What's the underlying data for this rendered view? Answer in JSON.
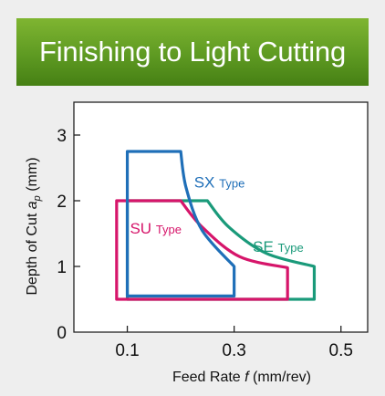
{
  "banner": {
    "title": "Finishing to Light Cutting",
    "color_top": "#7fb531",
    "color_bottom": "#468014"
  },
  "chart_data": {
    "type": "area",
    "xlabel_parts": [
      "Feed Rate ",
      "f",
      " (mm/rev)"
    ],
    "ylabel_parts": [
      "Depth of Cut ",
      "a",
      "p",
      " (mm)"
    ],
    "xlim": [
      0,
      0.55
    ],
    "ylim": [
      0,
      3.5
    ],
    "x_ticks": [
      0.1,
      0.3,
      0.5
    ],
    "x_tick_labels": [
      "0.1",
      "0.3",
      "0.5"
    ],
    "y_ticks": [
      0,
      1,
      2,
      3
    ],
    "y_tick_labels": [
      "0",
      "1",
      "2",
      "3"
    ],
    "grid": false,
    "series": [
      {
        "name": "SE",
        "suffix": "Type",
        "color": "#1a9a7a",
        "outline": [
          [
            0.1,
            0.5
          ],
          [
            0.1,
            2.0
          ],
          [
            0.25,
            2.0
          ],
          [
            0.29,
            1.6
          ],
          [
            0.36,
            1.2
          ],
          [
            0.45,
            1.0
          ],
          [
            0.45,
            0.5
          ]
        ]
      },
      {
        "name": "SU",
        "suffix": "Type",
        "color": "#d6156a",
        "outline": [
          [
            0.08,
            0.5
          ],
          [
            0.08,
            2.0
          ],
          [
            0.2,
            2.0
          ],
          [
            0.24,
            1.6
          ],
          [
            0.31,
            1.15
          ],
          [
            0.4,
            0.98
          ],
          [
            0.4,
            0.5
          ]
        ]
      },
      {
        "name": "SX",
        "suffix": "Type",
        "color": "#1f6fb8",
        "outline": [
          [
            0.1,
            0.55
          ],
          [
            0.1,
            2.75
          ],
          [
            0.2,
            2.75
          ],
          [
            0.21,
            2.2
          ],
          [
            0.24,
            1.55
          ],
          [
            0.3,
            1.0
          ],
          [
            0.3,
            0.55
          ]
        ]
      }
    ]
  }
}
